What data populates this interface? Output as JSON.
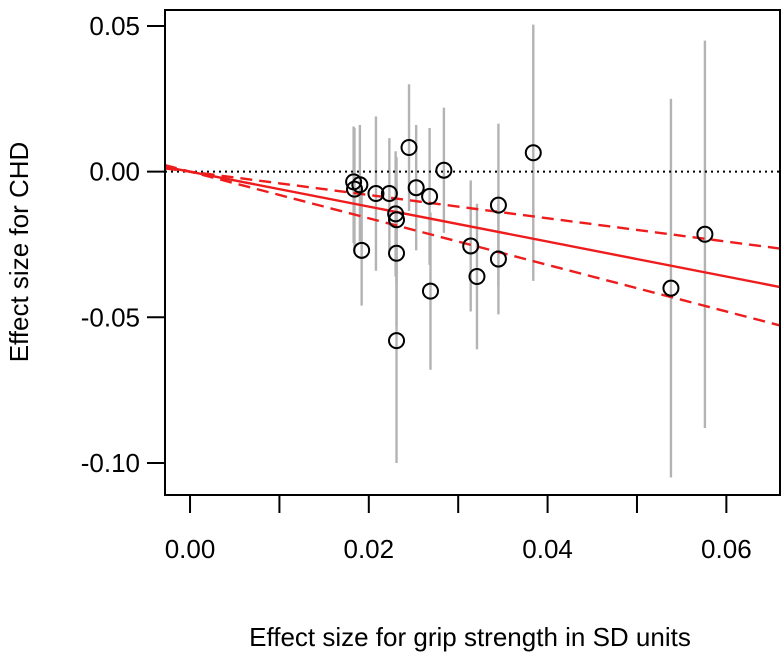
{
  "chart_data": {
    "type": "scatter",
    "title": "",
    "xlabel": "Effect size for grip strength in SD units",
    "ylabel": "Effect size for CHD",
    "xlim": [
      -0.0028,
      0.066
    ],
    "ylim": [
      -0.111,
      0.0555
    ],
    "x_ticks": [
      0.0,
      0.01,
      0.02,
      0.03,
      0.04,
      0.05,
      0.06
    ],
    "x_tick_labels": [
      "0.00",
      "",
      "0.02",
      "",
      "0.04",
      "",
      "0.06"
    ],
    "y_ticks": [
      0.05,
      0.0,
      -0.05,
      -0.1
    ],
    "y_tick_labels": [
      "0.05",
      "0.00",
      "-0.05",
      "-0.10"
    ],
    "grid": false,
    "points": [
      {
        "x": 0.0183,
        "y": -0.0035,
        "lo": -0.0245,
        "hi": 0.0155
      },
      {
        "x": 0.0184,
        "y": -0.006,
        "lo": -0.028,
        "hi": 0.015
      },
      {
        "x": 0.019,
        "y": -0.0045,
        "lo": -0.024,
        "hi": 0.016
      },
      {
        "x": 0.0192,
        "y": -0.027,
        "lo": -0.046,
        "hi": -0.008
      },
      {
        "x": 0.0208,
        "y": -0.0075,
        "lo": -0.034,
        "hi": 0.019
      },
      {
        "x": 0.0223,
        "y": -0.0075,
        "lo": -0.027,
        "hi": 0.0115
      },
      {
        "x": 0.023,
        "y": -0.0145,
        "lo": -0.036,
        "hi": 0.007
      },
      {
        "x": 0.0231,
        "y": -0.0165,
        "lo": -0.038,
        "hi": 0.005
      },
      {
        "x": 0.0231,
        "y": -0.028,
        "lo": -0.053,
        "hi": -0.003
      },
      {
        "x": 0.0231,
        "y": -0.058,
        "lo": -0.1,
        "hi": -0.016
      },
      {
        "x": 0.0245,
        "y": 0.0083,
        "lo": -0.0135,
        "hi": 0.03
      },
      {
        "x": 0.0253,
        "y": -0.0055,
        "lo": -0.027,
        "hi": 0.016
      },
      {
        "x": 0.0268,
        "y": -0.0085,
        "lo": -0.032,
        "hi": 0.015
      },
      {
        "x": 0.0269,
        "y": -0.041,
        "lo": -0.068,
        "hi": -0.014
      },
      {
        "x": 0.0284,
        "y": 0.0005,
        "lo": -0.021,
        "hi": 0.022
      },
      {
        "x": 0.0314,
        "y": -0.0255,
        "lo": -0.048,
        "hi": -0.003
      },
      {
        "x": 0.0321,
        "y": -0.036,
        "lo": -0.061,
        "hi": -0.011
      },
      {
        "x": 0.0345,
        "y": -0.0115,
        "lo": -0.0395,
        "hi": 0.0165
      },
      {
        "x": 0.0345,
        "y": -0.03,
        "lo": -0.049,
        "hi": -0.011
      },
      {
        "x": 0.0384,
        "y": 0.0065,
        "lo": -0.0375,
        "hi": 0.0505
      },
      {
        "x": 0.0538,
        "y": -0.04,
        "lo": -0.105,
        "hi": 0.025
      },
      {
        "x": 0.0576,
        "y": -0.0215,
        "lo": -0.088,
        "hi": 0.045
      }
    ],
    "reference_line": {
      "y": 0.0,
      "style": "dotted",
      "color": "#000000"
    },
    "fit_line": {
      "slope": -0.6,
      "intercept": 0.0,
      "color": "#ee1c1c"
    },
    "ci_lines": [
      {
        "slope": -0.4,
        "intercept": 0.0,
        "style": "dashed",
        "color": "#ee1c1c"
      },
      {
        "slope": -0.8,
        "intercept": 0.0,
        "style": "dashed",
        "color": "#ee1c1c"
      }
    ],
    "colors": {
      "errorbar": "#b3b3b3",
      "point": "#000000",
      "axis": "#000000"
    }
  }
}
